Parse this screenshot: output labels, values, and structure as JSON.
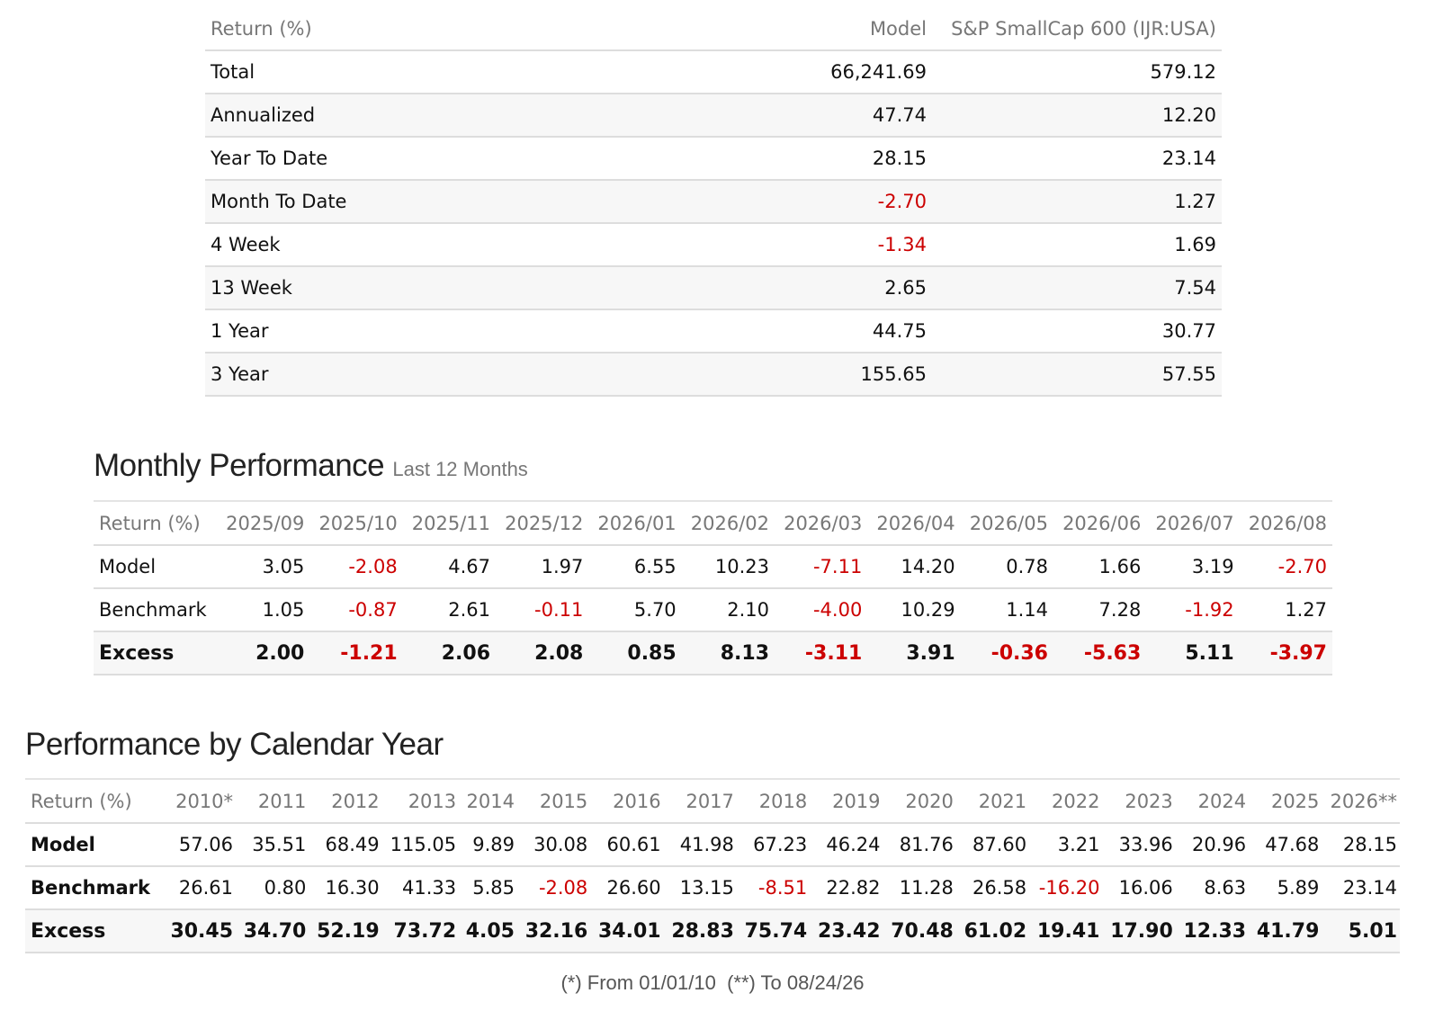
{
  "summary": {
    "headers": [
      "Return (%)",
      "Model",
      "S&P SmallCap 600 (IJR:USA)"
    ],
    "rows": [
      {
        "label": "Total",
        "model": "66,241.69",
        "bench": "579.12"
      },
      {
        "label": "Annualized",
        "model": "47.74",
        "bench": "12.20"
      },
      {
        "label": "Year To Date",
        "model": "28.15",
        "bench": "23.14"
      },
      {
        "label": "Month To Date",
        "model": "-2.70",
        "bench": "1.27"
      },
      {
        "label": "4 Week",
        "model": "-1.34",
        "bench": "1.69"
      },
      {
        "label": "13 Week",
        "model": "2.65",
        "bench": "7.54"
      },
      {
        "label": "1 Year",
        "model": "44.75",
        "bench": "30.77"
      },
      {
        "label": "3 Year",
        "model": "155.65",
        "bench": "57.55"
      }
    ]
  },
  "monthly": {
    "title": "Monthly Performance",
    "subtitle": "Last 12 Months",
    "header_label": "Return (%)",
    "columns": [
      "2025/09",
      "2025/10",
      "2025/11",
      "2025/12",
      "2026/01",
      "2026/02",
      "2026/03",
      "2026/04",
      "2026/05",
      "2026/06",
      "2026/07",
      "2026/08"
    ],
    "rows": [
      {
        "label": "Model",
        "values": [
          "3.05",
          "-2.08",
          "4.67",
          "1.97",
          "6.55",
          "10.23",
          "-7.11",
          "14.20",
          "0.78",
          "1.66",
          "3.19",
          "-2.70"
        ]
      },
      {
        "label": "Benchmark",
        "values": [
          "1.05",
          "-0.87",
          "2.61",
          "-0.11",
          "5.70",
          "2.10",
          "-4.00",
          "10.29",
          "1.14",
          "7.28",
          "-1.92",
          "1.27"
        ]
      },
      {
        "label": "Excess",
        "values": [
          "2.00",
          "-1.21",
          "2.06",
          "2.08",
          "0.85",
          "8.13",
          "-3.11",
          "3.91",
          "-0.36",
          "-5.63",
          "5.11",
          "-3.97"
        ]
      }
    ]
  },
  "yearly": {
    "title": "Performance by Calendar Year",
    "header_label": "Return (%)",
    "columns": [
      "2010*",
      "2011",
      "2012",
      "2013",
      "2014",
      "2015",
      "2016",
      "2017",
      "2018",
      "2019",
      "2020",
      "2021",
      "2022",
      "2023",
      "2024",
      "2025",
      "2026**"
    ],
    "rows": [
      {
        "label": "Model",
        "values": [
          "57.06",
          "35.51",
          "68.49",
          "115.05",
          "9.89",
          "30.08",
          "60.61",
          "41.98",
          "67.23",
          "46.24",
          "81.76",
          "87.60",
          "3.21",
          "33.96",
          "20.96",
          "47.68",
          "28.15"
        ]
      },
      {
        "label": "Benchmark",
        "values": [
          "26.61",
          "0.80",
          "16.30",
          "41.33",
          "5.85",
          "-2.08",
          "26.60",
          "13.15",
          "-8.51",
          "22.82",
          "11.28",
          "26.58",
          "-16.20",
          "16.06",
          "8.63",
          "5.89",
          "23.14"
        ]
      },
      {
        "label": "Excess",
        "values": [
          "30.45",
          "34.70",
          "52.19",
          "73.72",
          "4.05",
          "32.16",
          "34.01",
          "28.83",
          "75.74",
          "23.42",
          "70.48",
          "61.02",
          "19.41",
          "17.90",
          "12.33",
          "41.79",
          "5.01"
        ]
      }
    ]
  },
  "footnote": "(*) From 01/01/10  (**) To 08/24/26",
  "colors": {
    "negative": "#cc0000"
  }
}
